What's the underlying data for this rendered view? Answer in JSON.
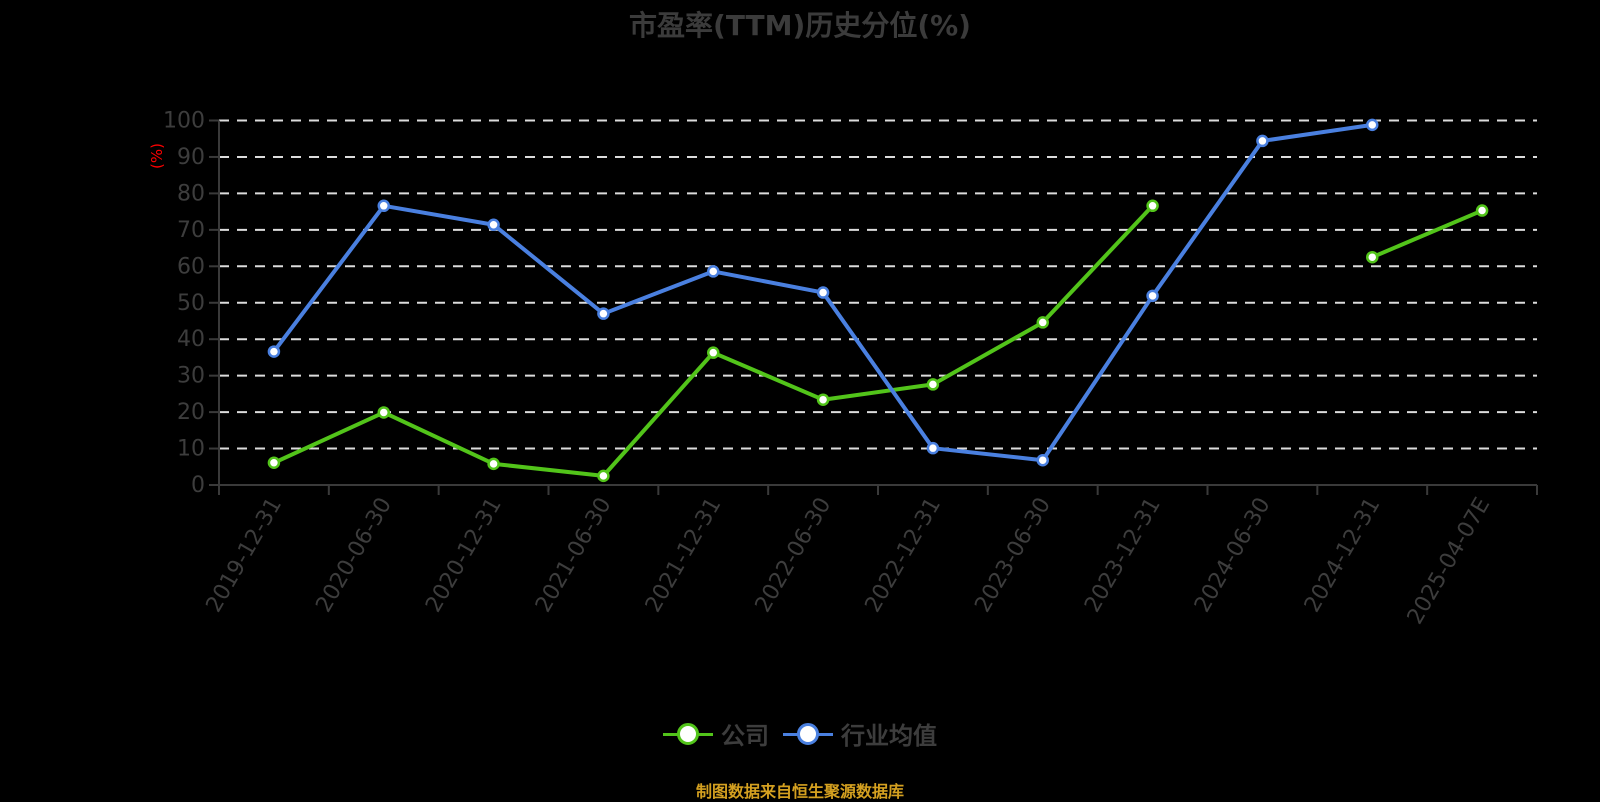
{
  "title": "市盈率(TTM)历史分位(%)",
  "footer": "制图数据来自恒生聚源数据库",
  "colors": {
    "company": "#52c41a",
    "industry": "#4a80e0",
    "grid": "#dcdcdc",
    "axis": "#3a3a3a",
    "ylabel": "#ff0000",
    "footer": "#d4a020"
  },
  "legend": [
    {
      "label": "公司",
      "color": "#52c41a"
    },
    {
      "label": "行业均值",
      "color": "#4a80e0"
    }
  ],
  "chart_data": {
    "type": "line",
    "title": "市盈率(TTM)历史分位(%)",
    "xlabel": "",
    "ylabel": "(%)",
    "ylim": [
      0,
      100
    ],
    "yticks": [
      0,
      10,
      20,
      30,
      40,
      50,
      60,
      70,
      80,
      90,
      100
    ],
    "grid": true,
    "legend_position": "bottom",
    "categories": [
      "2019-12-31",
      "2020-06-30",
      "2020-12-31",
      "2021-06-30",
      "2021-12-31",
      "2022-06-30",
      "2022-12-31",
      "2023-06-30",
      "2023-12-31",
      "2024-06-30",
      "2024-12-31",
      "2025-04-07E"
    ],
    "series": [
      {
        "name": "公司",
        "color": "#52c41a",
        "values": [
          6.1,
          19.9,
          5.8,
          2.5,
          36.3,
          23.4,
          27.6,
          44.6,
          76.6,
          null,
          62.5,
          75.3
        ]
      },
      {
        "name": "行业均值",
        "color": "#4a80e0",
        "values": [
          36.6,
          76.6,
          71.4,
          47.0,
          58.6,
          52.8,
          10.1,
          6.8,
          51.9,
          94.4,
          98.8,
          null
        ]
      }
    ]
  }
}
